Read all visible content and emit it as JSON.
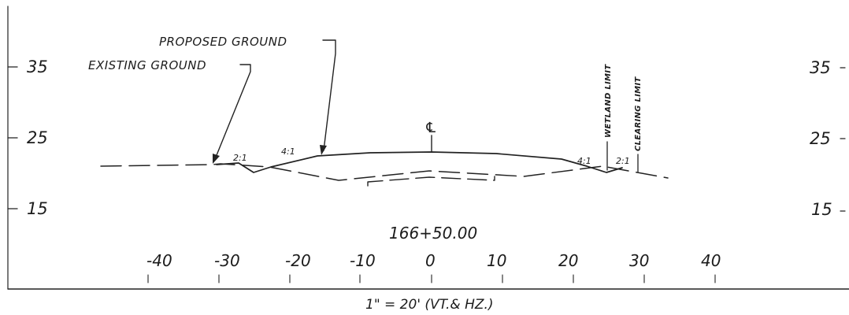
{
  "elevation_labels": {
    "left": [
      "35",
      "25",
      "15"
    ],
    "right": [
      "35",
      "25",
      "15"
    ]
  },
  "station_label": "166+50.00",
  "offset_ticks": [
    "-40",
    "-30",
    "-20",
    "-10",
    "0",
    "10",
    "20",
    "30",
    "40"
  ],
  "scale_note": "1\" = 20' (VT.& HZ.)",
  "annotations": {
    "proposed_ground": "PROPOSED GROUND",
    "existing_ground": "EXISTING GROUND",
    "wetland_limit": "WETLAND LIMIT",
    "clearing_limit": "CLEARING LIMIT",
    "centerline": "℄"
  },
  "slope_labels": {
    "left_outer": "2:1",
    "left_inner": "4:1",
    "right_inner": "4:1",
    "right_outer": "2:1"
  }
}
